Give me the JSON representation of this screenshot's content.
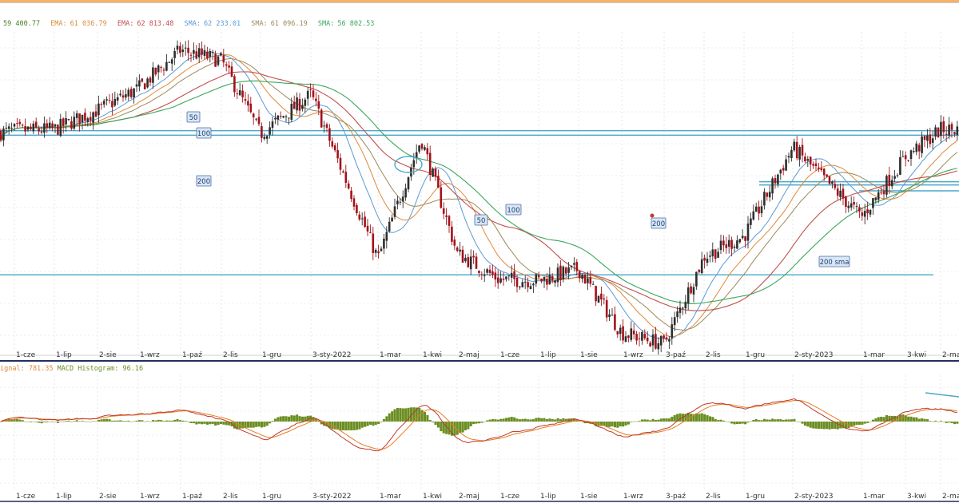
{
  "legend": {
    "items": [
      {
        "label": "",
        "value": "59 400.77",
        "color": "#4b7f2a"
      },
      {
        "label": "EMA:",
        "value": "61 036.79",
        "color": "#d98c3a"
      },
      {
        "label": "EMA:",
        "value": "62 813.48",
        "color": "#c0504d"
      },
      {
        "label": "SMA:",
        "value": "62 233.01",
        "color": "#5b9bd5"
      },
      {
        "label": "SMA:",
        "value": "61 096.19",
        "color": "#9b8a5a"
      },
      {
        "label": "SMA:",
        "value": "56 802.53",
        "color": "#3aa65b"
      }
    ]
  },
  "macd_legend": {
    "signal": "ignal: 781.35",
    "histogram": "MACD Histogram: 96.16"
  },
  "x_ticks": [
    "1-cze",
    "1-lip",
    "2-sie",
    "1-wrz",
    "1-paź",
    "2-lis",
    "1-gru",
    "3-sty-2022",
    "1-mar",
    "1-kwi",
    "2-maj",
    "1-cze",
    "1-lip",
    "1-sie",
    "1-wrz",
    "3-paź",
    "2-lis",
    "1-gru",
    "2-sty-2023",
    "1-mar",
    "3-kwi",
    "2-maj"
  ],
  "annotations": {
    "ma50_a": "50",
    "ma100_a": "100",
    "ma200_a": "200",
    "ma50_b": "50",
    "ma100_b": "100",
    "ma200_b": "200",
    "sma200": "200 sma"
  },
  "colors": {
    "up": "#2e2e2e",
    "down": "#a3121a",
    "ema_orange": "#e0893b",
    "ema_red": "#c0504d",
    "sma_blue": "#5b9bd5",
    "sma_olive": "#9b8a5a",
    "sma_green": "#3aa65b",
    "hline": "#4aa8c8",
    "histogram": "#6b8e23",
    "macd_line": "#c0392b",
    "signal_line": "#e67e22"
  },
  "chart_data": [
    {
      "type": "candlestick",
      "title": "",
      "x": [
        "1-cze",
        "1-lip",
        "2-sie",
        "1-wrz",
        "1-paź",
        "2-lis",
        "1-gru",
        "3-sty-2022",
        "1-mar",
        "1-kwi",
        "2-maj",
        "1-cze",
        "1-lip",
        "1-sie",
        "1-wrz",
        "3-paź",
        "2-lis",
        "1-gru",
        "2-sty-2023",
        "1-mar",
        "3-kwi",
        "2-maj"
      ],
      "price_path": [
        [
          "1-cze",
          63800
        ],
        [
          "1-lip",
          63900
        ],
        [
          "2-sie",
          65600
        ],
        [
          "1-wrz",
          67500
        ],
        [
          "1-paź",
          70900
        ],
        [
          "2-lis",
          70000
        ],
        [
          "1-gru",
          63500
        ],
        [
          "3-sty-2022",
          67000
        ],
        [
          "1-mar",
          52500
        ],
        [
          "1-kwi",
          63100
        ],
        [
          "2-maj",
          53000
        ],
        [
          "1-cze",
          50700
        ],
        [
          "1-lip",
          50600
        ],
        [
          "1-sie",
          51600
        ],
        [
          "1-wrz",
          46000
        ],
        [
          "3-paź",
          45000
        ],
        [
          "2-lis",
          52700
        ],
        [
          "1-gru",
          54500
        ],
        [
          "2-sty-2023",
          62300
        ],
        [
          "1-mar",
          56200
        ],
        [
          "3-kwi",
          61500
        ],
        [
          "2-maj",
          63900
        ]
      ],
      "moving_averages": [
        {
          "name": "EMA",
          "value": 61036.79
        },
        {
          "name": "EMA",
          "value": 62813.48
        },
        {
          "name": "SMA",
          "value": 62233.01
        },
        {
          "name": "SMA",
          "value": 61096.19
        },
        {
          "name": "SMA",
          "value": 56802.53
        }
      ],
      "horizontal_levels": [
        63800,
        63400,
        51100,
        59300,
        58500
      ],
      "grid": true
    },
    {
      "type": "bar",
      "title": "",
      "series": [
        {
          "name": "ignal",
          "last": 781.35
        },
        {
          "name": "MACD Histogram",
          "last": 96.16
        }
      ],
      "grid": true
    }
  ]
}
